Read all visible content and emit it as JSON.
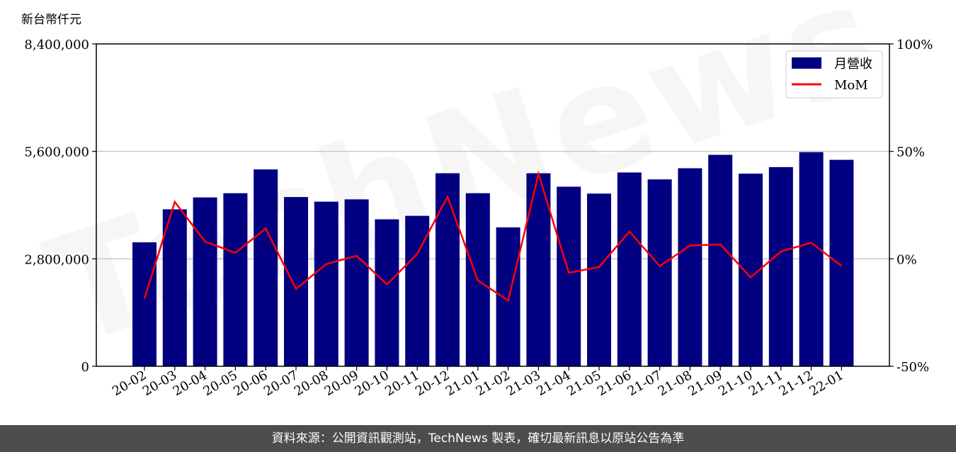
{
  "chart_data": {
    "type": "bar",
    "y_unit_label": "新台幣仟元",
    "categories": [
      "20-02",
      "20-03",
      "20-04",
      "20-05",
      "20-06",
      "20-07",
      "20-08",
      "20-09",
      "20-10",
      "20-11",
      "20-12",
      "21-01",
      "21-02",
      "21-03",
      "21-04",
      "21-05",
      "21-06",
      "21-07",
      "21-08",
      "21-09",
      "21-10",
      "21-11",
      "21-12",
      "22-01"
    ],
    "series": [
      {
        "name": "月營收",
        "type": "bar",
        "axis": "left",
        "color": "#000080",
        "values": [
          3230000,
          4090000,
          4400000,
          4510000,
          5130000,
          4410000,
          4290000,
          4350000,
          3830000,
          3920000,
          5030000,
          4510000,
          3620000,
          5030000,
          4680000,
          4500000,
          5050000,
          4870000,
          5160000,
          5510000,
          5020000,
          5190000,
          5580000,
          5380000
        ]
      },
      {
        "name": "MoM",
        "type": "line",
        "axis": "right",
        "color": "#ff0000",
        "values": [
          -18.5,
          26.5,
          8.0,
          2.8,
          14.1,
          -14.0,
          -2.4,
          1.4,
          -11.9,
          2.3,
          28.9,
          -10.1,
          -19.4,
          39.5,
          -6.5,
          -3.8,
          12.7,
          -3.4,
          6.2,
          6.7,
          -8.6,
          3.4,
          7.5,
          -3.3
        ]
      }
    ],
    "y_left": {
      "ylim": [
        0,
        8400000
      ],
      "ticks": [
        0,
        2800000,
        5600000,
        8400000
      ],
      "tick_labels": [
        "0",
        "2,800,000",
        "5,600,000",
        "8,400,000"
      ]
    },
    "y_right": {
      "ylim": [
        -50,
        100
      ],
      "ticks": [
        -50,
        0,
        50,
        100
      ],
      "tick_labels": [
        "-50%",
        "0%",
        "50%",
        "100%"
      ]
    },
    "grid": "horizontal",
    "legend": "top-right",
    "watermark": "TechNews"
  },
  "footer": {
    "text": "資料來源：公開資訊觀測站，TechNews 製表，確切最新訊息以原站公告為準"
  }
}
